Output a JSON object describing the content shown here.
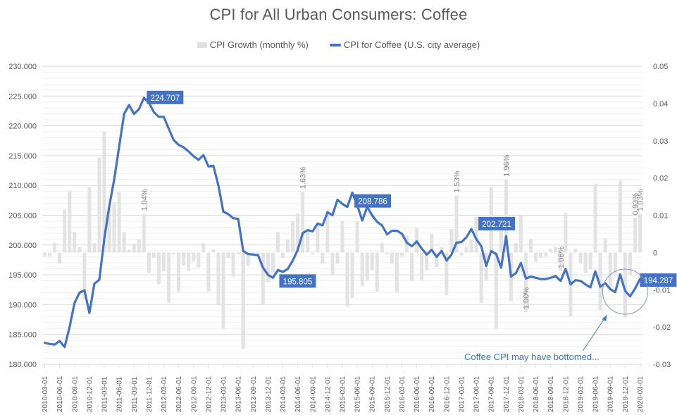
{
  "chart_data": {
    "type": "bar+line",
    "title": "CPI for All Urban Consumers: Coffee",
    "legend_position": "top",
    "legend": [
      {
        "name": "CPI Growth (monthly %)",
        "type": "bar",
        "color": "#e0e0e0"
      },
      {
        "name": "CPI for Coffee (U.S. city average)",
        "type": "line",
        "color": "#4472c4"
      }
    ],
    "y_left": {
      "min": 180,
      "max": 230,
      "major_step": 5,
      "ticks": [
        "180.000",
        "185.000",
        "190.000",
        "195.000",
        "200.000",
        "205.000",
        "210.000",
        "215.000",
        "220.000",
        "225.000",
        "230.000"
      ]
    },
    "y_right": {
      "min": -0.03,
      "max": 0.05,
      "major_step": 0.01,
      "ticks": [
        "-0.03",
        "-0.02",
        "-0.01",
        "0",
        "0.01",
        "0.02",
        "0.03",
        "0.04",
        "0.05"
      ]
    },
    "grid": true,
    "x_start": "2010-03-01",
    "x_end": "2020-03-01",
    "x_ticks": [
      "2010-03-01",
      "2010-06-01",
      "2010-09-01",
      "2010-12-01",
      "2011-03-01",
      "2011-06-01",
      "2011-09-01",
      "2011-12-01",
      "2012-03-01",
      "2012-06-01",
      "2012-09-01",
      "2012-12-01",
      "2013-03-01",
      "2013-06-01",
      "2013-09-01",
      "2013-12-01",
      "2014-03-01",
      "2014-06-01",
      "2014-09-01",
      "2014-12-01",
      "2015-03-01",
      "2015-06-01",
      "2015-09-01",
      "2015-12-01",
      "2016-03-01",
      "2016-06-01",
      "2016-09-01",
      "2016-12-01",
      "2017-03-01",
      "2017-06-01",
      "2017-09-01",
      "2017-12-01",
      "2018-03-01",
      "2018-06-01",
      "2018-09-01",
      "2018-12-01",
      "2019-03-01",
      "2019-06-01",
      "2019-09-01",
      "2019-12-01",
      "2020-03-01"
    ],
    "series": [
      {
        "name": "CPI for Coffee (U.S. city average)",
        "axis": "left",
        "values": [
          183.6,
          183.4,
          183.3,
          183.9,
          182.9,
          186.2,
          190.3,
          192.0,
          192.4,
          188.6,
          193.5,
          194.2,
          201.0,
          206.5,
          211.0,
          216.5,
          222.0,
          223.5,
          222.0,
          222.8,
          224.7,
          223.9,
          222.3,
          221.5,
          221.5,
          219.5,
          217.6,
          216.8,
          216.4,
          215.7,
          214.9,
          214.3,
          215.1,
          213.2,
          213.3,
          210.0,
          205.6,
          205.2,
          204.5,
          204.4,
          199.0,
          198.5,
          198.4,
          198.3,
          196.2,
          195.0,
          194.5,
          195.8,
          195.5,
          196.0,
          197.4,
          199.2,
          202.0,
          202.5,
          202.3,
          203.6,
          203.3,
          205.5,
          205.0,
          207.6,
          206.9,
          206.4,
          208.8,
          206.7,
          204.1,
          206.4,
          205.0,
          203.9,
          203.3,
          201.8,
          202.4,
          202.4,
          201.9,
          200.4,
          199.8,
          200.6,
          199.4,
          198.4,
          199.2,
          198.0,
          199.0,
          197.4,
          198.4,
          200.4,
          200.5,
          201.3,
          202.7,
          201.0,
          199.8,
          196.5,
          199.0,
          198.5,
          196.2,
          201.5,
          194.7,
          195.3,
          197.0,
          194.4,
          194.7,
          194.5,
          194.3,
          194.3,
          194.5,
          194.8,
          194.0,
          196.0,
          193.4,
          194.1,
          194.0,
          193.4,
          192.9,
          195.6,
          193.0,
          193.6,
          192.6,
          192.1,
          195.1,
          192.3,
          191.4,
          192.7,
          194.3
        ]
      },
      {
        "name": "CPI Growth (monthly %)",
        "axis": "right",
        "values": [
          -0.001,
          -0.001,
          0.0025,
          -0.003,
          0.0115,
          0.0165,
          0.0055,
          0.0015,
          -0.0125,
          0.0175,
          0.0025,
          0.0255,
          0.0325,
          0.0122,
          0.0135,
          0.0162,
          0.0055,
          0.0008,
          0.0024,
          0.0035,
          0.0104,
          -0.0055,
          -0.0015,
          -0.0085,
          -0.005,
          -0.0135,
          -0.0005,
          -0.0105,
          -0.0035,
          -0.005,
          -0.0025,
          -0.004,
          0.0025,
          -0.0105,
          0.0008,
          -0.0138,
          -0.0205,
          -0.0015,
          -0.0065,
          -0.0005,
          -0.0258,
          -0.0035,
          -0.0005,
          -0.0005,
          -0.0138,
          -0.008,
          -0.0055,
          0.0055,
          -0.0015,
          0.0035,
          0.0085,
          0.0105,
          0.0163,
          0.0055,
          -0.0005,
          0.0075,
          -0.003,
          0.0115,
          -0.006,
          -0.003,
          0.0085,
          -0.0145,
          -0.0122,
          0.0085,
          -0.009,
          -0.0075,
          -0.0048,
          -0.0105,
          0.0025,
          -0.0005,
          -0.003,
          -0.0105,
          -0.001,
          0.0045,
          -0.0075,
          0.0065,
          -0.0075,
          -0.0048,
          0.005,
          -0.004,
          0.0015,
          -0.0115,
          0.0063,
          0.0153,
          -0.0008,
          0.0015,
          0.0035,
          0.0095,
          -0.0135,
          -0.0075,
          0.0175,
          -0.0205,
          0.0063,
          0.0196,
          -0.013,
          0.0025,
          0.01,
          -0.016,
          0.0035,
          -0.0025,
          -0.0015,
          -0.001,
          0.001,
          0.0015,
          -0.005,
          0.0106,
          -0.0172,
          0.001,
          -0.003,
          -0.0055,
          -0.0045,
          0.0185,
          -0.0155,
          0.0038,
          -0.0095,
          -0.0055,
          0.0193,
          -0.0175,
          -0.006,
          0.0093,
          0.0103
        ]
      }
    ],
    "value_callouts": [
      {
        "label": "224.707",
        "date": "2011-11-01"
      },
      {
        "label": "195.805",
        "date": "2014-02-01"
      },
      {
        "label": "208.786",
        "date": "2015-04-01"
      },
      {
        "label": "202.721",
        "date": "2017-05-01"
      },
      {
        "label": "194.287",
        "date": "2020-03-01"
      }
    ],
    "bar_labels": [
      {
        "label": "1.04%",
        "date": "2011-11-01"
      },
      {
        "label": "1.63%",
        "date": "2014-07-01"
      },
      {
        "label": "1.53%",
        "date": "2017-02-01"
      },
      {
        "label": "1.96%",
        "date": "2017-12-01"
      },
      {
        "label": "1.00%",
        "date": "2018-04-01"
      },
      {
        "label": "1.06%",
        "date": "2018-11-01"
      },
      {
        "label": "0.93%",
        "date": "2020-02-01"
      },
      {
        "label": "1.03%",
        "date": "2020-03-01"
      }
    ],
    "annotation": {
      "text": "Coffee CPI may have bottomed..."
    }
  }
}
